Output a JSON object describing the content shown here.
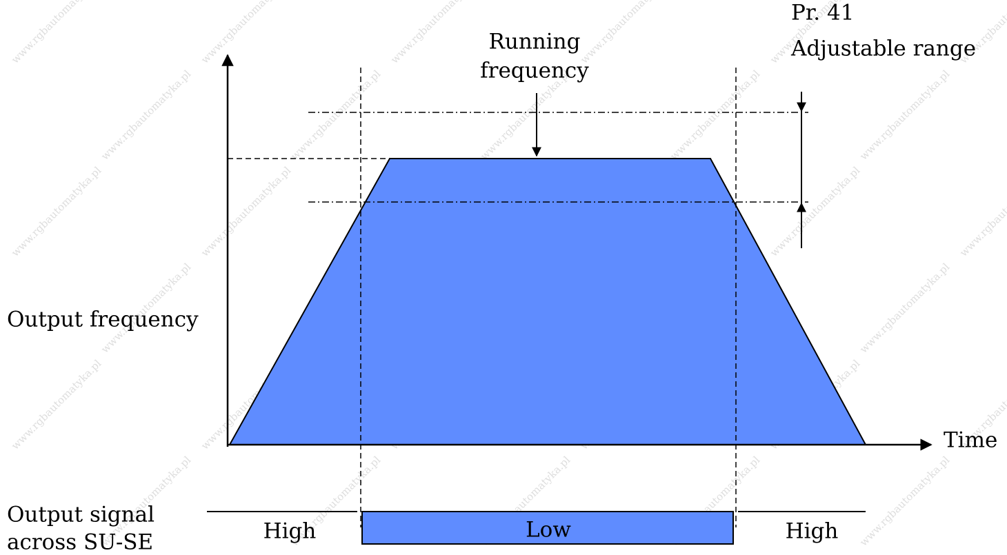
{
  "labels": {
    "running": [
      "Running",
      "frequency"
    ],
    "range": [
      "Pr. 41",
      "Adjustable range"
    ],
    "y_axis": "Output frequency",
    "x_axis": "Time",
    "signal": [
      "Output signal",
      "across SU-SE"
    ],
    "high_left": "High",
    "low": "Low",
    "high_right": "High"
  },
  "watermark": "www.rgbautomatyka.pl"
}
